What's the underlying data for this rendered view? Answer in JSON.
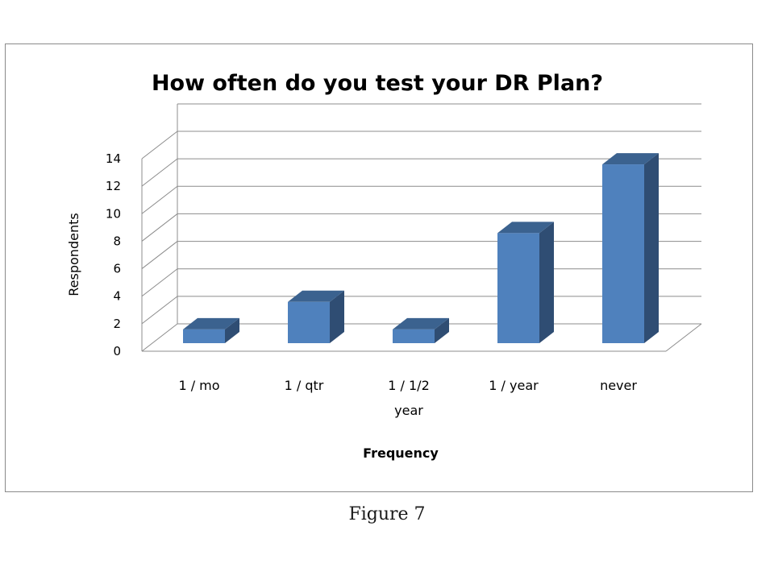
{
  "chart_data": {
    "type": "bar",
    "style": "3d-column",
    "title": "How often do you test your DR Plan?",
    "xlabel": "Frequency",
    "ylabel": "Respondents",
    "categories": [
      "1 / mo",
      "1 / qtr",
      "1 / 1/2 year",
      "1 / year",
      "never"
    ],
    "category_label_lines": [
      [
        "1 / mo"
      ],
      [
        "1 / qtr"
      ],
      [
        "1 / 1/2",
        "year"
      ],
      [
        "1 / year"
      ],
      [
        "never"
      ]
    ],
    "values": [
      1,
      3,
      1,
      8,
      13
    ],
    "ylim": [
      0,
      14
    ],
    "yticks": [
      "0",
      "2",
      "4",
      "6",
      "8",
      "10",
      "12",
      "14"
    ],
    "grid": true,
    "legend": "none",
    "colors": {
      "bar_front": "#4f81bd",
      "bar_side": "#2f4d73",
      "bar_top": "#3b628f",
      "grid": "#8c8c8c"
    }
  },
  "caption": "Figure 7"
}
